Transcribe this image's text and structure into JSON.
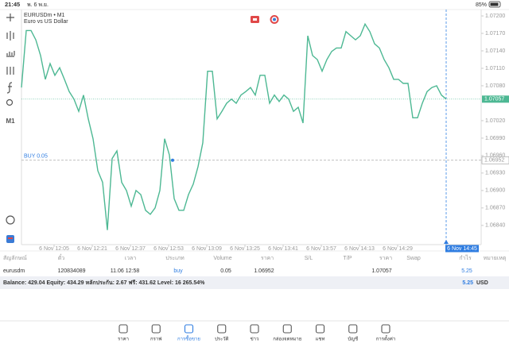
{
  "status": {
    "time": "21:45",
    "date": "พ. 6 พ.ย.",
    "battery": "85%"
  },
  "chart": {
    "type": "line",
    "symbol": "EURUSDm • M1",
    "description": "Euro vs US Dollar",
    "timeframe": "M1",
    "color": "#4db893",
    "values": [
      1.07077,
      1.07175,
      1.07175,
      1.07159,
      1.07132,
      1.07091,
      1.07118,
      1.07098,
      1.07111,
      1.07091,
      1.0707,
      1.07057,
      1.07036,
      1.07064,
      1.07023,
      1.06989,
      1.06934,
      1.06914,
      1.06832,
      1.06955,
      1.06968,
      1.06914,
      1.069,
      1.06873,
      1.069,
      1.06893,
      1.06866,
      1.06859,
      1.0687,
      1.069,
      1.06989,
      1.06961,
      1.06886,
      1.06866,
      1.06866,
      1.06893,
      1.06911,
      1.06941,
      1.06982,
      1.07105,
      1.07105,
      1.07023,
      1.07036,
      1.0705,
      1.07057,
      1.0705,
      1.07064,
      1.0707,
      1.07077,
      1.07064,
      1.07098,
      1.07098,
      1.0705,
      1.07064,
      1.07053,
      1.07064,
      1.07057,
      1.07036,
      1.07043,
      1.07016,
      1.07166,
      1.07132,
      1.07125,
      1.07105,
      1.07125,
      1.07139,
      1.07145,
      1.07145,
      1.07173,
      1.07166,
      1.07159,
      1.07166,
      1.07186,
      1.07173,
      1.07152,
      1.07145,
      1.07125,
      1.07111,
      1.07091,
      1.07091,
      1.07084,
      1.07084,
      1.07025,
      1.07025,
      1.0705,
      1.0707,
      1.07077,
      1.0708,
      1.07064,
      1.07057
    ],
    "ylim": [
      1.06807,
      1.07211
    ],
    "yticks": [
      {
        "value": 1.072,
        "label": "1.07200"
      },
      {
        "value": 1.0717,
        "label": "1.07170"
      },
      {
        "value": 1.0714,
        "label": "1.07140"
      },
      {
        "value": 1.0711,
        "label": "1.07110"
      },
      {
        "value": 1.0708,
        "label": "1.07080"
      },
      {
        "value": 1.0702,
        "label": "1.07020"
      },
      {
        "value": 1.0699,
        "label": "1.06990"
      },
      {
        "value": 1.0696,
        "label": "1.06960"
      },
      {
        "value": 1.0693,
        "label": "1.06930"
      },
      {
        "value": 1.069,
        "label": "1.06900"
      },
      {
        "value": 1.0687,
        "label": "1.06870"
      },
      {
        "value": 1.0684,
        "label": "1.06840"
      }
    ],
    "xticks": [
      "6 Nov 12:05",
      "6 Nov 12:21",
      "6 Nov 12:37",
      "6 Nov 12:53",
      "6 Nov 13:09",
      "6 Nov 13:25",
      "6 Nov 13:41",
      "6 Nov 13:57",
      "6 Nov 14:13",
      "6 Nov 14:29"
    ],
    "crosshair_label": "6 Nov 14:45",
    "current": {
      "value": 1.07057,
      "label": "1.07057"
    },
    "order": {
      "text": "BUY 0.05",
      "value": 1.06952,
      "label": "1.06952"
    }
  },
  "table": {
    "headers": [
      "สัญลักษณ์",
      "ตั๋ว",
      "เวลา",
      "ประเภท",
      "Volume",
      "ราคา",
      "S/L",
      "T/P",
      "ราคา",
      "Swap",
      "กำไร",
      "หมายเหตุ"
    ],
    "row": {
      "symbol": "eurusdm",
      "ticket": "120834089",
      "time": "11.06 12:58",
      "type": "buy",
      "volume": "0.05",
      "price": "1.06952",
      "current_price": "1.07057",
      "profit": "5.25"
    }
  },
  "summary": {
    "text": "Balance: 429.04 Equity: 434.29 หลักประกัน: 2.67 ฟรี: 431.62 Level: 16 265.54%",
    "total": "5.25",
    "currency": "USD"
  },
  "nav": [
    "ราคา",
    "กราฟ",
    "การซื้อขาย",
    "ประวัติ",
    "ข่าว",
    "กล่องจดหมาย",
    "แชท",
    "บัญชี",
    "การตั้งค่า"
  ]
}
